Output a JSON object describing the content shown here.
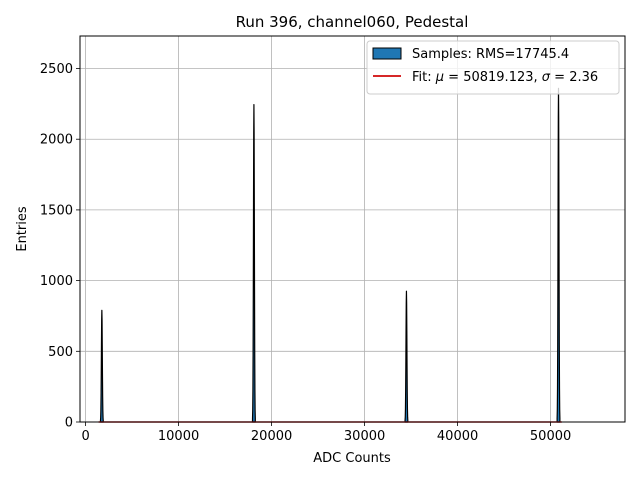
{
  "chart_data": {
    "type": "histogram",
    "title": "Run 396, channel060, Pedestal",
    "xlabel": "ADC Counts",
    "ylabel": "Entries",
    "xlim": [
      -600,
      58000
    ],
    "ylim": [
      0,
      2730
    ],
    "xticks": [
      0,
      10000,
      20000,
      30000,
      40000,
      50000
    ],
    "yticks": [
      0,
      500,
      1000,
      1500,
      2000,
      2500
    ],
    "xtick_labels": [
      "0",
      "10000",
      "20000",
      "30000",
      "40000",
      "50000"
    ],
    "ytick_labels": [
      "0",
      "500",
      "1000",
      "1500",
      "2000",
      "2500"
    ],
    "grid": true,
    "legend_position": "top-right",
    "legend": {
      "samples_label": "Samples: RMS=17745.4",
      "fit_label_prefix": "Fit: ",
      "fit_mu_symbol": "μ",
      "fit_mu_text": " = 50819.123, ",
      "fit_sigma_symbol": "σ",
      "fit_sigma_text": " = 2.36"
    },
    "peaks": [
      {
        "x": 1750,
        "y": 790,
        "halfwidth": 150
      },
      {
        "x": 18100,
        "y": 2245,
        "halfwidth": 150
      },
      {
        "x": 34500,
        "y": 925,
        "halfwidth": 150
      },
      {
        "x": 50850,
        "y": 2360,
        "halfwidth": 150
      }
    ],
    "fit": {
      "mu": 50819.123,
      "sigma": 2.36,
      "amplitude": 0,
      "x_range": [
        1400,
        51200
      ]
    },
    "colors": {
      "samples_fill": "#1f77b4",
      "samples_edge": "#000000",
      "fit_line": "#d62728",
      "grid": "#b0b0b0"
    }
  }
}
